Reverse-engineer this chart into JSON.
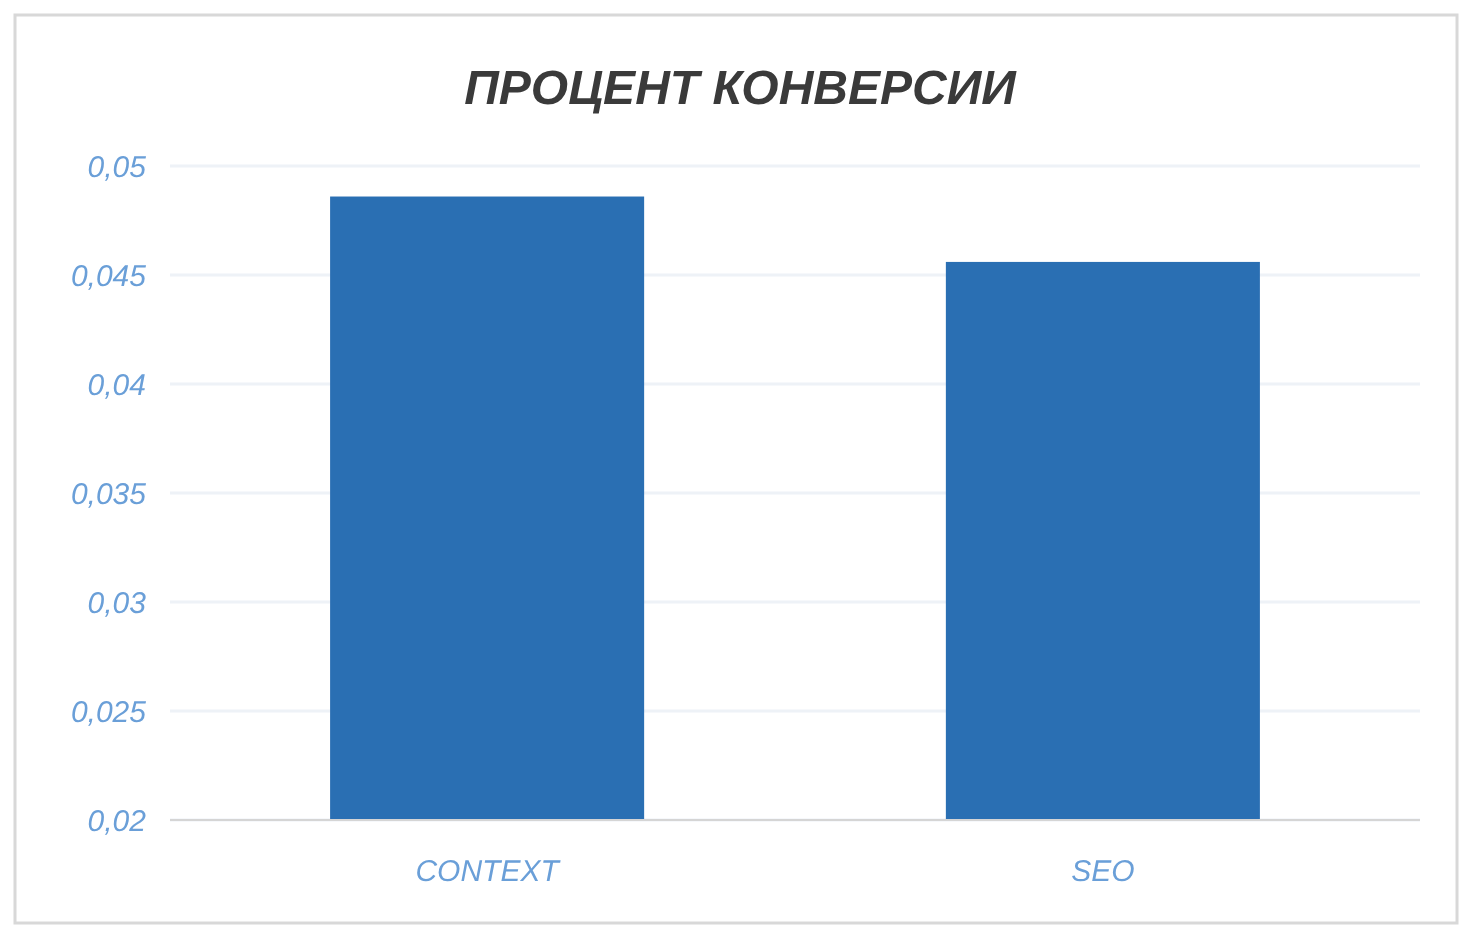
{
  "chart_data": {
    "type": "bar",
    "title": "ПРОЦЕНТ КОНВЕРСИИ",
    "categories": [
      "CONTEXT",
      "SEO"
    ],
    "values": [
      0.0486,
      0.0456
    ],
    "color": "#2a6fb3",
    "ylim": [
      0.02,
      0.05
    ],
    "yticks": [
      {
        "value": 0.02,
        "label": "0,02"
      },
      {
        "value": 0.025,
        "label": "0,025"
      },
      {
        "value": 0.03,
        "label": "0,03"
      },
      {
        "value": 0.035,
        "label": "0,035"
      },
      {
        "value": 0.04,
        "label": "0,04"
      },
      {
        "value": 0.045,
        "label": "0,045"
      },
      {
        "value": 0.05,
        "label": "0,05"
      }
    ],
    "grid": "y"
  }
}
